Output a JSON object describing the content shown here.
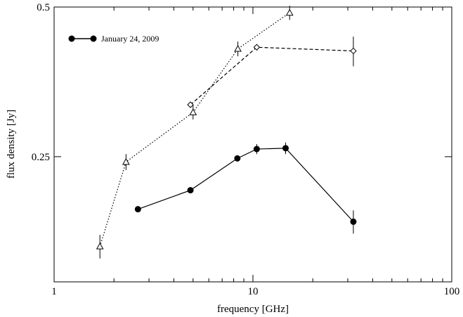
{
  "chart_data": {
    "type": "line",
    "title": "",
    "xlabel": "frequency [GHz]",
    "ylabel": "flux density [Jy]",
    "x_scale": "log",
    "y_scale": "log",
    "xlim": [
      1,
      100
    ],
    "ylim": [
      0.14,
      0.5
    ],
    "x_ticks": [
      {
        "value": 1,
        "label": "1"
      },
      {
        "value": 10,
        "label": "10"
      },
      {
        "value": 100,
        "label": "100"
      }
    ],
    "y_ticks": [
      {
        "value": 0.25,
        "label": "0.25"
      },
      {
        "value": 0.5,
        "label": "0.5"
      }
    ],
    "grid": false,
    "legend": {
      "placement": "top-left"
    },
    "series": [
      {
        "name": "January 24, 2009",
        "marker": "filled-circle",
        "line_style": "solid",
        "in_legend": true,
        "points": [
          {
            "x": 2.64,
            "y": 0.196,
            "err": 0.0
          },
          {
            "x": 4.85,
            "y": 0.214,
            "err": 0.0
          },
          {
            "x": 8.35,
            "y": 0.248,
            "err": 0.0
          },
          {
            "x": 10.45,
            "y": 0.259,
            "err": 0.006
          },
          {
            "x": 14.6,
            "y": 0.26,
            "err": 0.007
          },
          {
            "x": 32.0,
            "y": 0.185,
            "err": 0.01
          }
        ]
      },
      {
        "marker": "open-diamond",
        "line_style": "dashed",
        "in_legend": false,
        "points": [
          {
            "x": 4.85,
            "y": 0.318,
            "err": 0.0
          },
          {
            "x": 10.45,
            "y": 0.415,
            "err": 0.0
          },
          {
            "x": 32.0,
            "y": 0.408,
            "err": 0.028
          }
        ]
      },
      {
        "marker": "open-triangle",
        "line_style": "dotted",
        "in_legend": false,
        "points": [
          {
            "x": 1.7,
            "y": 0.165,
            "err": 0.009
          },
          {
            "x": 2.3,
            "y": 0.244,
            "err": 0.009
          },
          {
            "x": 5.0,
            "y": 0.307,
            "err": 0.01
          },
          {
            "x": 8.4,
            "y": 0.412,
            "err": 0.014
          },
          {
            "x": 15.3,
            "y": 0.487,
            "err": 0.016
          }
        ]
      }
    ]
  }
}
